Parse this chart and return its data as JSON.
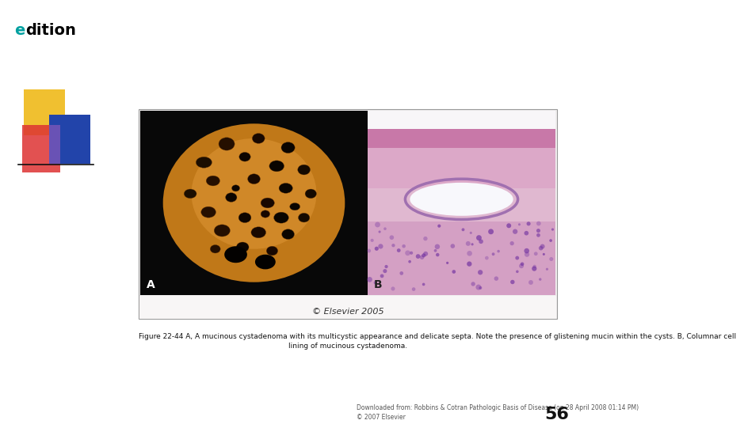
{
  "background_color": "#ffffff",
  "logo_e_color": "#00a0a0",
  "logo_text_color": "#000000",
  "logo_fontsize": 14,
  "elsevier_caption": "© Elsevier 2005",
  "caption_line1": "Figure 22-44 A, A mucinous cystadenoma with its multicystic appearance and delicate septa. Note the presence of glistening mucin within the cysts. B, Columnar cell",
  "caption_line2": "lining of mucinous cystadenoma.",
  "source_line1": "Downloaded from: Robbins & Cotran Pathologic Basis of Disease (on 28 April 2008 01:14 PM)",
  "source_line2": "© 2007 Elsevier",
  "page_number": "56",
  "caption_fontsize": 6.5,
  "source_fontsize": 5.5,
  "page_fontsize": 16,
  "geo_colors": {
    "yellow": "#f0c030",
    "blue": "#2244aa",
    "red": "#dd3333",
    "pink": "#e86080"
  },
  "label_A": "A",
  "label_B": "B"
}
